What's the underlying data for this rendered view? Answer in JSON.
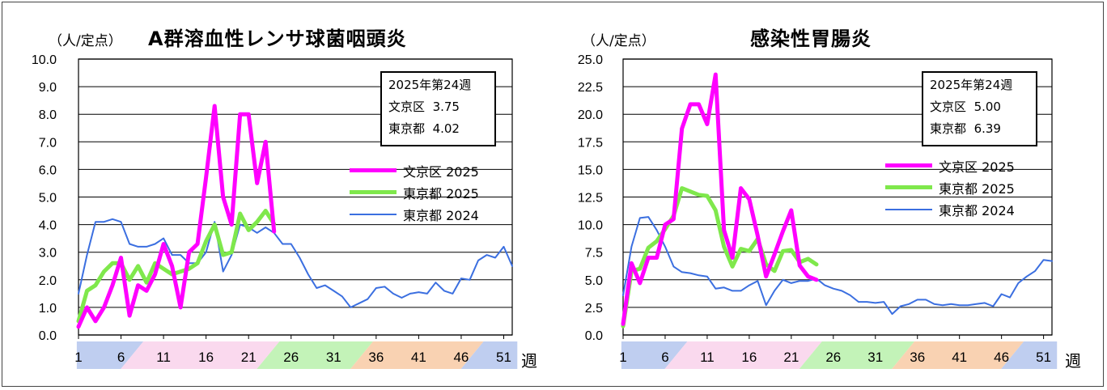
{
  "colors": {
    "bunkyo_2025": "#FF00FF",
    "tokyo_2025": "#7FE84C",
    "tokyo_2024": "#3B6FE0",
    "band_winter": "#B8C9EE",
    "band_spring": "#F9D5EC",
    "band_summer": "#BDF2B0",
    "band_autumn": "#F8CDAA",
    "band_winter_end": "#B8C9EE"
  },
  "week_unit": "週",
  "chart_data": [
    {
      "type": "line",
      "title": "A群溶血性レンサ球菌咽頭炎",
      "ylabel": "（人/定点）",
      "xlabel": "週",
      "ylim": [
        0,
        10
      ],
      "xlim": [
        1,
        52
      ],
      "ytick_labels": [
        "0.0",
        "1.0",
        "2.0",
        "3.0",
        "4.0",
        "5.0",
        "6.0",
        "7.0",
        "8.0",
        "9.0",
        "10.0"
      ],
      "xtick_labels": [
        "1",
        "6",
        "11",
        "16",
        "21",
        "26",
        "31",
        "36",
        "41",
        "46",
        "51"
      ],
      "infobox": {
        "title": "2025年第24週",
        "rows": [
          {
            "label": "文京区",
            "value": "3.75"
          },
          {
            "label": "東京都",
            "value": "4.02"
          }
        ]
      },
      "series": [
        {
          "name": "文京区 2025",
          "key": "bunkyo_2025",
          "x": [
            1,
            2,
            3,
            4,
            5,
            6,
            7,
            8,
            9,
            10,
            11,
            12,
            13,
            14,
            15,
            16,
            17,
            18,
            19,
            20,
            21,
            22,
            23,
            24
          ],
          "values": [
            0.3,
            1.0,
            0.5,
            1.0,
            1.8,
            2.8,
            0.7,
            1.8,
            1.6,
            2.2,
            3.3,
            2.5,
            1.0,
            3.0,
            3.3,
            5.7,
            8.3,
            5.0,
            4.0,
            8.0,
            8.0,
            5.5,
            7.0,
            3.75
          ]
        },
        {
          "name": "東京都 2025",
          "key": "tokyo_2025",
          "x": [
            1,
            2,
            3,
            4,
            5,
            6,
            7,
            8,
            9,
            10,
            11,
            12,
            13,
            14,
            15,
            16,
            17,
            18,
            19,
            20,
            21,
            22,
            23,
            24
          ],
          "values": [
            0.5,
            1.6,
            1.8,
            2.3,
            2.6,
            2.6,
            2.0,
            2.5,
            1.9,
            2.6,
            2.4,
            2.2,
            2.3,
            2.4,
            2.6,
            3.4,
            4.0,
            2.9,
            3.0,
            4.4,
            3.8,
            4.1,
            4.5,
            4.02
          ]
        },
        {
          "name": "東京都 2024",
          "key": "tokyo_2024",
          "x": [
            1,
            2,
            3,
            4,
            5,
            6,
            7,
            8,
            9,
            10,
            11,
            12,
            13,
            14,
            15,
            16,
            17,
            18,
            19,
            20,
            21,
            22,
            23,
            24,
            25,
            26,
            27,
            28,
            29,
            30,
            31,
            32,
            33,
            34,
            35,
            36,
            37,
            38,
            39,
            40,
            41,
            42,
            43,
            44,
            45,
            46,
            47,
            48,
            49,
            50,
            51,
            52
          ],
          "values": [
            1.5,
            2.9,
            4.1,
            4.1,
            4.2,
            4.1,
            3.3,
            3.2,
            3.2,
            3.3,
            3.5,
            2.9,
            2.9,
            2.6,
            2.6,
            3.0,
            4.1,
            2.3,
            2.9,
            4.0,
            3.9,
            3.7,
            3.9,
            3.7,
            3.3,
            3.3,
            2.8,
            2.2,
            1.7,
            1.8,
            1.6,
            1.4,
            1.0,
            1.15,
            1.3,
            1.7,
            1.75,
            1.5,
            1.35,
            1.5,
            1.55,
            1.5,
            1.9,
            1.6,
            1.5,
            2.05,
            2.0,
            2.7,
            2.9,
            2.8,
            3.2,
            2.5
          ]
        }
      ]
    },
    {
      "type": "line",
      "title": "感染性胃腸炎",
      "ylabel": "（人/定点）",
      "xlabel": "週",
      "ylim": [
        0,
        25
      ],
      "xlim": [
        1,
        52
      ],
      "ytick_labels": [
        "0.0",
        "2.5",
        "5.0",
        "7.5",
        "10.0",
        "12.5",
        "15.0",
        "17.5",
        "20.0",
        "22.5",
        "25.0"
      ],
      "xtick_labels": [
        "1",
        "6",
        "11",
        "16",
        "21",
        "26",
        "31",
        "36",
        "41",
        "46",
        "51"
      ],
      "infobox": {
        "title": "2025年第24週",
        "rows": [
          {
            "label": "文京区",
            "value": "5.00"
          },
          {
            "label": "東京都",
            "value": "6.39"
          }
        ]
      },
      "series": [
        {
          "name": "文京区 2025",
          "key": "bunkyo_2025",
          "x": [
            1,
            2,
            3,
            4,
            5,
            6,
            7,
            8,
            9,
            10,
            11,
            12,
            13,
            14,
            15,
            16,
            17,
            18,
            19,
            20,
            21,
            22,
            23,
            24
          ],
          "values": [
            1.0,
            6.5,
            4.7,
            7.0,
            7.0,
            10.0,
            10.5,
            18.7,
            20.9,
            20.9,
            19.1,
            23.6,
            9.5,
            7.0,
            13.3,
            12.3,
            9.0,
            5.3,
            7.3,
            9.4,
            11.3,
            6.3,
            5.3,
            5.0
          ]
        },
        {
          "name": "東京都 2025",
          "key": "tokyo_2025",
          "x": [
            1,
            2,
            3,
            4,
            5,
            6,
            7,
            8,
            9,
            10,
            11,
            12,
            13,
            14,
            15,
            16,
            17,
            18,
            19,
            20,
            21,
            22,
            23,
            24
          ],
          "values": [
            0.8,
            5.8,
            6.0,
            7.9,
            8.5,
            9.6,
            10.8,
            13.3,
            13.0,
            12.7,
            12.6,
            11.3,
            8.0,
            6.2,
            7.8,
            7.6,
            8.7,
            6.4,
            5.8,
            7.6,
            7.7,
            6.6,
            6.9,
            6.39
          ]
        },
        {
          "name": "東京都 2024",
          "key": "tokyo_2024",
          "x": [
            1,
            2,
            3,
            4,
            5,
            6,
            7,
            8,
            9,
            10,
            11,
            12,
            13,
            14,
            15,
            16,
            17,
            18,
            19,
            20,
            21,
            22,
            23,
            24,
            25,
            26,
            27,
            28,
            29,
            30,
            31,
            32,
            33,
            34,
            35,
            36,
            37,
            38,
            39,
            40,
            41,
            42,
            43,
            44,
            45,
            46,
            47,
            48,
            49,
            50,
            51,
            52
          ],
          "values": [
            3.6,
            8.0,
            10.6,
            10.7,
            9.5,
            8.0,
            6.2,
            5.7,
            5.6,
            5.4,
            5.3,
            4.2,
            4.3,
            4.0,
            4.0,
            4.5,
            4.9,
            2.7,
            4.0,
            5.0,
            4.7,
            4.9,
            4.9,
            5.1,
            4.5,
            4.2,
            4.0,
            3.6,
            3.0,
            3.0,
            2.9,
            3.0,
            1.9,
            2.6,
            2.8,
            3.2,
            3.2,
            2.8,
            2.7,
            2.8,
            2.7,
            2.7,
            2.8,
            2.9,
            2.6,
            3.7,
            3.4,
            4.7,
            5.3,
            5.8,
            6.8,
            6.7
          ]
        }
      ]
    }
  ]
}
